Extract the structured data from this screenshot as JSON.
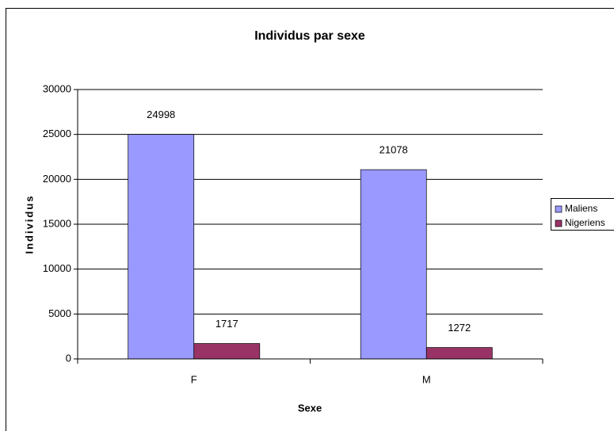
{
  "chart_data": {
    "type": "bar",
    "title": "Individus par sexe",
    "xlabel": "Sexe",
    "ylabel": "Individus",
    "categories": [
      "F",
      "M"
    ],
    "series": [
      {
        "name": "Maliens",
        "color": "#9999ff",
        "values": [
          24998,
          21078
        ]
      },
      {
        "name": "Nigeriens",
        "color": "#993366",
        "values": [
          1717,
          1272
        ]
      }
    ],
    "ylim": [
      0,
      30000
    ],
    "yticks": [
      0,
      5000,
      10000,
      15000,
      20000,
      25000,
      30000
    ],
    "grid": true,
    "legend": "right",
    "data_labels": true
  }
}
